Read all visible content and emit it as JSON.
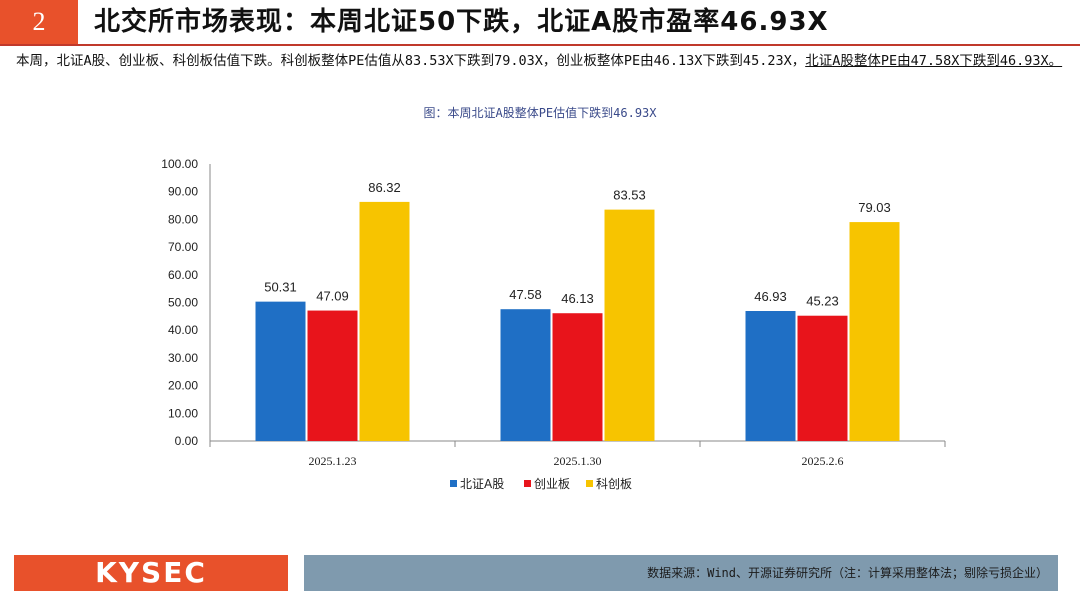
{
  "header": {
    "section_number": "2",
    "title": "北交所市场表现：本周北证50下跌，北证A股市盈率46.93X"
  },
  "body": {
    "text_main": "本周，北证A股、创业板、科创板估值下跌。科创板整体PE估值从83.53X下跌到79.03X，创业板整体PE由46.13X下跌到45.23X，",
    "text_underlined": "北证A股整体PE由47.58X下跌到46.93X。"
  },
  "figure_title": "图：本周北证A股整体PE估值下跌到46.93X",
  "chart_data": {
    "type": "bar",
    "categories": [
      "2025.1.23",
      "2025.1.30",
      "2025.2.6"
    ],
    "series": [
      {
        "name": "北证A股",
        "color": "#1f6fc5",
        "values": [
          50.31,
          47.58,
          46.93
        ]
      },
      {
        "name": "创业板",
        "color": "#e8141b",
        "values": [
          47.09,
          46.13,
          45.23
        ]
      },
      {
        "name": "科创板",
        "color": "#f7c400",
        "values": [
          86.32,
          83.53,
          79.03
        ]
      }
    ],
    "data_labels": [
      [
        "50.31",
        "47.58",
        "46.93"
      ],
      [
        "47.09",
        "46.13",
        "45.23"
      ],
      [
        "86.32",
        "83.53",
        "79.03"
      ]
    ],
    "yticks": [
      "0.00",
      "10.00",
      "20.00",
      "30.00",
      "40.00",
      "50.00",
      "60.00",
      "70.00",
      "80.00",
      "90.00",
      "100.00"
    ],
    "ylim": [
      0,
      100
    ],
    "title": "",
    "xlabel": "",
    "ylabel": "",
    "legend_position": "bottom"
  },
  "footer": {
    "logo": "KYSEC",
    "source": "数据来源：Wind、开源证券研究所（注：计算采用整体法；剔除亏损企业）"
  }
}
